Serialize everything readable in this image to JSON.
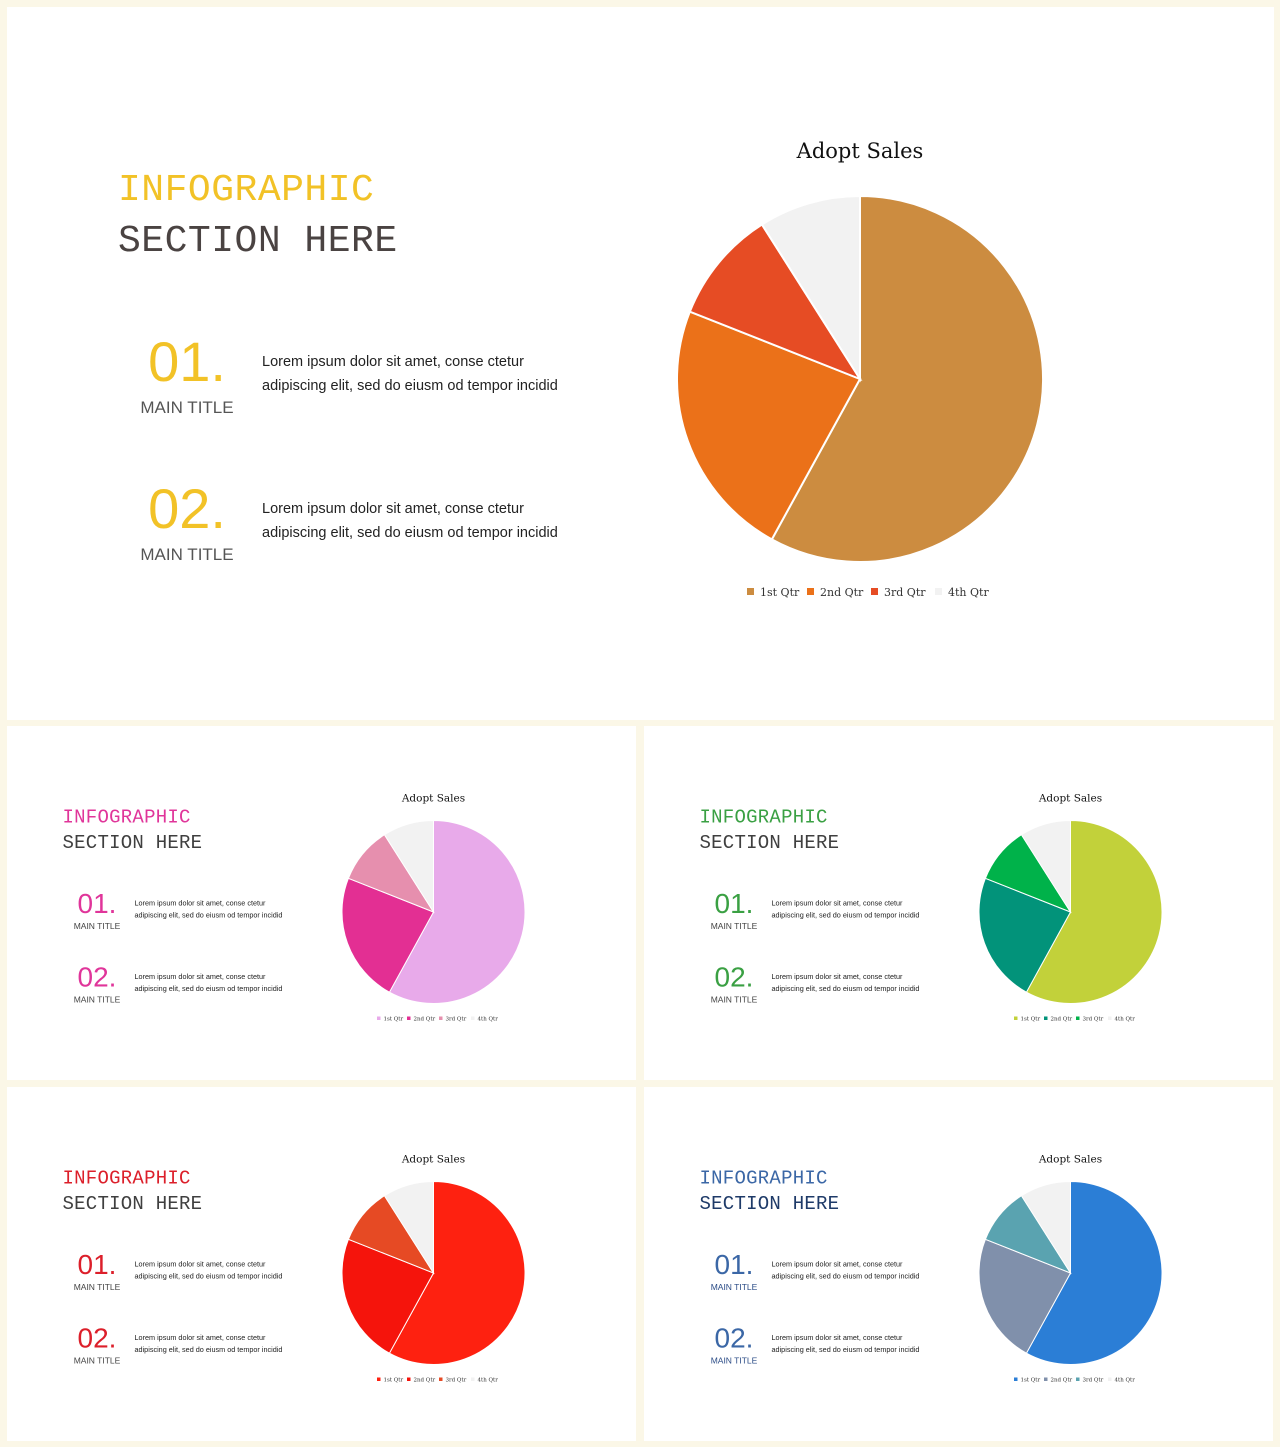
{
  "slides": [
    {
      "title_line1": "INFOGRAPHIC",
      "title_line2": "SECTION HERE",
      "accent": "#f2c227",
      "title2_color": "#4a4342",
      "label_color": "#555555",
      "items": [
        {
          "num": "01.",
          "label": "MAIN TITLE",
          "desc": "Lorem ipsum dolor sit amet, conse ctetur adipiscing elit, sed do eiusm od tempor incidid"
        },
        {
          "num": "02.",
          "label": "MAIN TITLE",
          "desc": "Lorem ipsum dolor sit amet, conse ctetur adipiscing elit, sed do eiusm od tempor incidid"
        }
      ],
      "chart_data": {
        "type": "pie",
        "title": "Adopt Sales",
        "categories": [
          "1st Qtr",
          "2nd Qtr",
          "3rd Qtr",
          "4th Qtr"
        ],
        "values": [
          58,
          23,
          10,
          9
        ],
        "colors": [
          "#cc8c40",
          "#eb7119",
          "#e64c24",
          "#f2f2f2"
        ],
        "legend": "bottom"
      }
    },
    {
      "title_line1": "INFOGRAPHIC",
      "title_line2": "SECTION HERE",
      "accent": "#e0359a",
      "title2_color": "#3f3f3f",
      "label_color": "#444444",
      "items": [
        {
          "num": "01.",
          "label": "MAIN TITLE",
          "desc": "Lorem ipsum dolor sit amet, conse ctetur adipiscing elit, sed do eiusm od tempor incidid"
        },
        {
          "num": "02.",
          "label": "MAIN TITLE",
          "desc": "Lorem ipsum dolor sit amet, conse ctetur adipiscing elit, sed do eiusm od tempor incidid"
        }
      ],
      "chart_data": {
        "type": "pie",
        "title": "Adopt Sales",
        "categories": [
          "1st Qtr",
          "2nd Qtr",
          "3rd Qtr",
          "4th Qtr"
        ],
        "values": [
          58,
          23,
          10,
          9
        ],
        "colors": [
          "#e8aaea",
          "#e32f93",
          "#e68fae",
          "#f2f2f2"
        ],
        "legend": "bottom"
      }
    },
    {
      "title_line1": "INFOGRAPHIC",
      "title_line2": "SECTION HERE",
      "accent": "#3aa043",
      "title2_color": "#3f3f3f",
      "label_color": "#444444",
      "items": [
        {
          "num": "01.",
          "label": "MAIN TITLE",
          "desc": "Lorem ipsum dolor sit amet, conse ctetur adipiscing elit, sed do eiusm od tempor incidid"
        },
        {
          "num": "02.",
          "label": "MAIN TITLE",
          "desc": "Lorem ipsum dolor sit amet, conse ctetur adipiscing elit, sed do eiusm od tempor incidid"
        }
      ],
      "chart_data": {
        "type": "pie",
        "title": "Adopt Sales",
        "categories": [
          "1st Qtr",
          "2nd Qtr",
          "3rd Qtr",
          "4th Qtr"
        ],
        "values": [
          58,
          23,
          10,
          9
        ],
        "colors": [
          "#c2d13a",
          "#02937a",
          "#00b24a",
          "#f2f2f2"
        ],
        "legend": "bottom"
      }
    },
    {
      "title_line1": "INFOGRAPHIC",
      "title_line2": "SECTION HERE",
      "accent": "#dc1f2a",
      "title2_color": "#3f3f3f",
      "label_color": "#444444",
      "items": [
        {
          "num": "01.",
          "label": "MAIN TITLE",
          "desc": "Lorem ipsum dolor sit amet, conse ctetur adipiscing elit, sed do eiusm od tempor incidid"
        },
        {
          "num": "02.",
          "label": "MAIN TITLE",
          "desc": "Lorem ipsum dolor sit amet, conse ctetur adipiscing elit, sed do eiusm od tempor incidid"
        }
      ],
      "chart_data": {
        "type": "pie",
        "title": "Adopt Sales",
        "categories": [
          "1st Qtr",
          "2nd Qtr",
          "3rd Qtr",
          "4th Qtr"
        ],
        "values": [
          58,
          23,
          10,
          9
        ],
        "colors": [
          "#fe2110",
          "#f5140c",
          "#e64a24",
          "#f2f2f2"
        ],
        "legend": "bottom"
      }
    },
    {
      "title_line1": "INFOGRAPHIC",
      "title_line2": "SECTION HERE",
      "accent": "#3b67a6",
      "title2_color": "#1e3a68",
      "label_color": "#2a4b86",
      "items": [
        {
          "num": "01.",
          "label": "MAIN TITLE",
          "desc": "Lorem ipsum dolor sit amet, conse ctetur adipiscing elit, sed do eiusm od tempor incidid"
        },
        {
          "num": "02.",
          "label": "MAIN TITLE",
          "desc": "Lorem ipsum dolor sit amet, conse ctetur adipiscing elit, sed do eiusm od tempor incidid"
        }
      ],
      "chart_data": {
        "type": "pie",
        "title": "Adopt Sales",
        "categories": [
          "1st Qtr",
          "2nd Qtr",
          "3rd Qtr",
          "4th Qtr"
        ],
        "values": [
          58,
          23,
          10,
          9
        ],
        "colors": [
          "#2b7ed6",
          "#8090ab",
          "#5aa3b0",
          "#f2f2f2"
        ],
        "legend": "bottom"
      }
    }
  ]
}
